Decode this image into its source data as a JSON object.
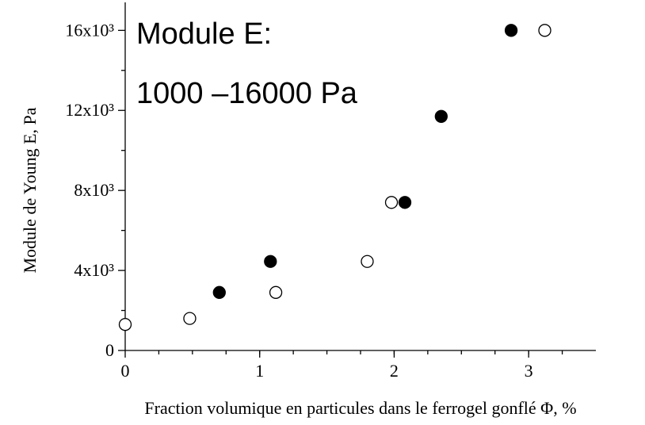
{
  "chart_data": {
    "type": "scatter",
    "xlabel": "Fraction volumique en particules dans le ferrogel gonflé Φ, %",
    "ylabel": "Module de Young E, Pa",
    "annotations": [
      "Module E:",
      "1000 –16000 Pa"
    ],
    "xlim": [
      0,
      3.5
    ],
    "ylim": [
      0,
      17400
    ],
    "xticks": [
      0,
      1,
      2,
      3
    ],
    "yticks": [
      0,
      {
        "value": 4000,
        "label": "4x10³"
      },
      {
        "value": 8000,
        "label": "8x10³"
      },
      {
        "value": 12000,
        "label": "12x10³"
      },
      {
        "value": 16000,
        "label": "16x10³"
      }
    ],
    "series": [
      {
        "color": "#000000",
        "x": [
          0.7,
          1.08,
          2.08,
          2.35,
          2.87
        ],
        "values": [
          2900,
          4450,
          7400,
          11700,
          16000
        ]
      },
      {
        "color": "#ffffff",
        "x": [
          0,
          0.48,
          1.12,
          1.8,
          1.98,
          3.12
        ],
        "values": [
          1300,
          1600,
          2900,
          4450,
          7400,
          16000
        ]
      }
    ]
  }
}
